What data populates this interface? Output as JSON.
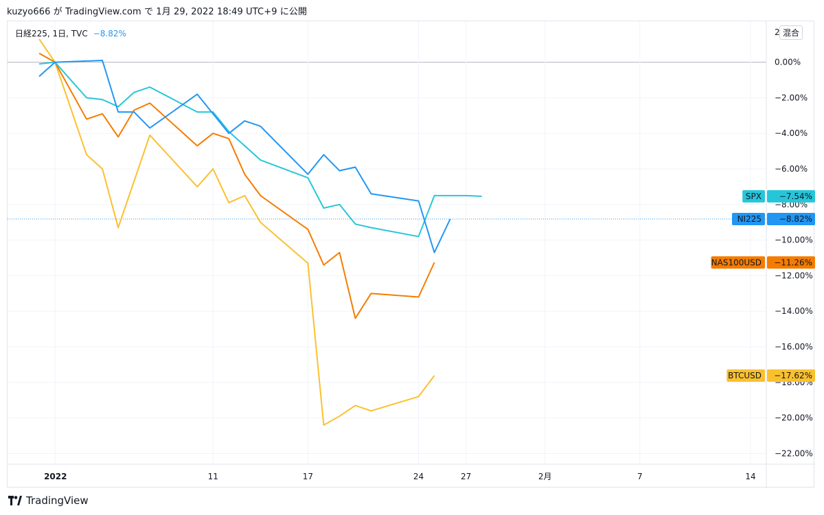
{
  "header": {
    "caption": "kuzyo666 が TradingView.com で 1月 29, 2022 18:49 UTC+9 に公開"
  },
  "legend": {
    "symbol": "日経225, 1日, TVC",
    "change": "−8.82%"
  },
  "toolbar": {
    "mode_label": "混合"
  },
  "footer": {
    "brand": "TradingView"
  },
  "colors": {
    "SPX": "#26c6da",
    "NI225": "#2196f3",
    "NAS100USD": "#f57c00",
    "BTCUSD": "#fbc02d",
    "grid": "#f0f3fa",
    "zero_line": "#b2b5be",
    "axis_text": "#131722"
  },
  "chart_data": {
    "type": "line",
    "x_scale": "date",
    "x_range": [
      "2021-12-29",
      "2022-02-15"
    ],
    "ylim": [
      -22.6,
      2.3
    ],
    "y_ticks": [
      0,
      -2,
      -4,
      -6,
      -8,
      -10,
      -12,
      -14,
      -16,
      -18,
      -20,
      -22
    ],
    "y_tick_labels": [
      "0.00%",
      "−2.00%",
      "−4.00%",
      "−6.00%",
      "−8.00%",
      "−10.00%",
      "−12.00%",
      "−14.00%",
      "−16.00%",
      "−18.00%",
      "−20.00%",
      "−22.00%"
    ],
    "y_top_partial_label": "2",
    "x_ticks": [
      {
        "date": "2022-01-01",
        "label": "2022"
      },
      {
        "date": "2022-01-11",
        "label": "11"
      },
      {
        "date": "2022-01-17",
        "label": "17"
      },
      {
        "date": "2022-01-24",
        "label": "24"
      },
      {
        "date": "2022-01-27",
        "label": "27"
      },
      {
        "date": "2022-02-01",
        "label": "2月"
      },
      {
        "date": "2022-02-07",
        "label": "7"
      },
      {
        "date": "2022-02-14",
        "label": "14"
      }
    ],
    "series": [
      {
        "name": "SPX",
        "last_label": "−7.54%",
        "x": [
          "2021-12-31",
          "2022-01-01",
          "2022-01-03",
          "2022-01-04",
          "2022-01-05",
          "2022-01-06",
          "2022-01-07",
          "2022-01-10",
          "2022-01-11",
          "2022-01-12",
          "2022-01-13",
          "2022-01-14",
          "2022-01-17",
          "2022-01-18",
          "2022-01-19",
          "2022-01-20",
          "2022-01-21",
          "2022-01-24",
          "2022-01-25",
          "2022-01-26",
          "2022-01-27",
          "2022-01-28"
        ],
        "values": [
          -0.1,
          0.0,
          -2.0,
          -2.1,
          -2.5,
          -1.7,
          -1.4,
          -2.8,
          -2.8,
          -3.9,
          -4.7,
          -5.5,
          -6.5,
          -8.2,
          -8.0,
          -9.1,
          -9.3,
          -9.8,
          -7.5,
          -7.5,
          -7.5,
          -7.54
        ]
      },
      {
        "name": "NI225",
        "last_label": "−8.82%",
        "x": [
          "2021-12-31",
          "2022-01-01",
          "2022-01-04",
          "2022-01-05",
          "2022-01-06",
          "2022-01-07",
          "2022-01-10",
          "2022-01-11",
          "2022-01-12",
          "2022-01-13",
          "2022-01-14",
          "2022-01-17",
          "2022-01-18",
          "2022-01-19",
          "2022-01-20",
          "2022-01-21",
          "2022-01-24",
          "2022-01-25",
          "2022-01-26",
          "2022-01-27",
          "2022-01-28"
        ],
        "values": [
          -0.8,
          0.0,
          0.1,
          -2.8,
          -2.8,
          -3.7,
          -1.8,
          -2.9,
          -4.0,
          -3.3,
          -3.6,
          -6.3,
          -5.2,
          -6.1,
          -5.9,
          -7.4,
          -7.8,
          -10.7,
          -8.82,
          -8.82,
          -8.82
        ]
      },
      {
        "name": "NAS100USD",
        "last_label": "−11.26%",
        "x": [
          "2021-12-31",
          "2022-01-01",
          "2022-01-03",
          "2022-01-04",
          "2022-01-05",
          "2022-01-06",
          "2022-01-07",
          "2022-01-10",
          "2022-01-11",
          "2022-01-12",
          "2022-01-13",
          "2022-01-14",
          "2022-01-17",
          "2022-01-18",
          "2022-01-19",
          "2022-01-20",
          "2022-01-21",
          "2022-01-24",
          "2022-01-25",
          "2022-01-26",
          "2022-01-27",
          "2022-01-28"
        ],
        "values": [
          0.5,
          0.0,
          -3.2,
          -2.9,
          -4.2,
          -2.7,
          -2.3,
          -4.7,
          -4.0,
          -4.3,
          -6.3,
          -7.5,
          -9.4,
          -11.4,
          -10.7,
          -14.4,
          -13.0,
          -13.2,
          -11.26,
          -11.26,
          -11.26,
          -11.26
        ]
      },
      {
        "name": "BTCUSD",
        "last_label": "−17.62%",
        "x": [
          "2021-12-31",
          "2022-01-01",
          "2022-01-03",
          "2022-01-04",
          "2022-01-05",
          "2022-01-06",
          "2022-01-07",
          "2022-01-10",
          "2022-01-11",
          "2022-01-12",
          "2022-01-13",
          "2022-01-14",
          "2022-01-17",
          "2022-01-18",
          "2022-01-19",
          "2022-01-20",
          "2022-01-21",
          "2022-01-24",
          "2022-01-25",
          "2022-01-26",
          "2022-01-27",
          "2022-01-28"
        ],
        "values": [
          1.3,
          0.0,
          -5.2,
          -6.0,
          -9.3,
          -6.7,
          -4.1,
          -7.0,
          -6.0,
          -7.9,
          -7.5,
          -9.0,
          -11.3,
          -20.4,
          -19.9,
          -19.3,
          -19.6,
          -18.8,
          -17.62,
          -17.62,
          -17.62,
          -17.62
        ]
      }
    ]
  }
}
